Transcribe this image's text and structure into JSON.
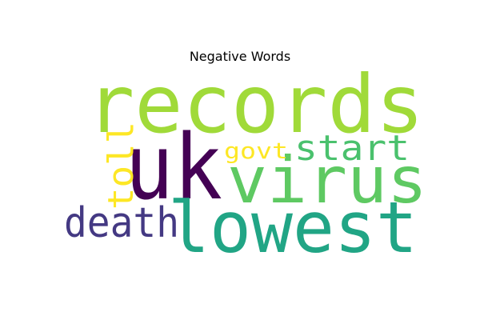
{
  "chart_data": {
    "type": "wordcloud",
    "title": "Negative Words",
    "words": [
      {
        "text": "records",
        "weight": 1.0,
        "color": "#a0da39",
        "orientation": "horizontal"
      },
      {
        "text": "uk",
        "weight": 0.95,
        "color": "#440154",
        "orientation": "horizontal"
      },
      {
        "text": "virus",
        "weight": 0.85,
        "color": "#5ec962",
        "orientation": "horizontal"
      },
      {
        "text": "lowest",
        "weight": 0.85,
        "color": "#21a585",
        "orientation": "horizontal"
      },
      {
        "text": "death",
        "weight": 0.5,
        "color": "#443983",
        "orientation": "horizontal"
      },
      {
        "text": "start",
        "weight": 0.45,
        "color": "#4ac16d",
        "orientation": "horizontal"
      },
      {
        "text": "toll",
        "weight": 0.45,
        "color": "#fde725",
        "orientation": "vertical"
      },
      {
        "text": "govt",
        "weight": 0.3,
        "color": "#fde725",
        "orientation": "horizontal"
      }
    ]
  }
}
